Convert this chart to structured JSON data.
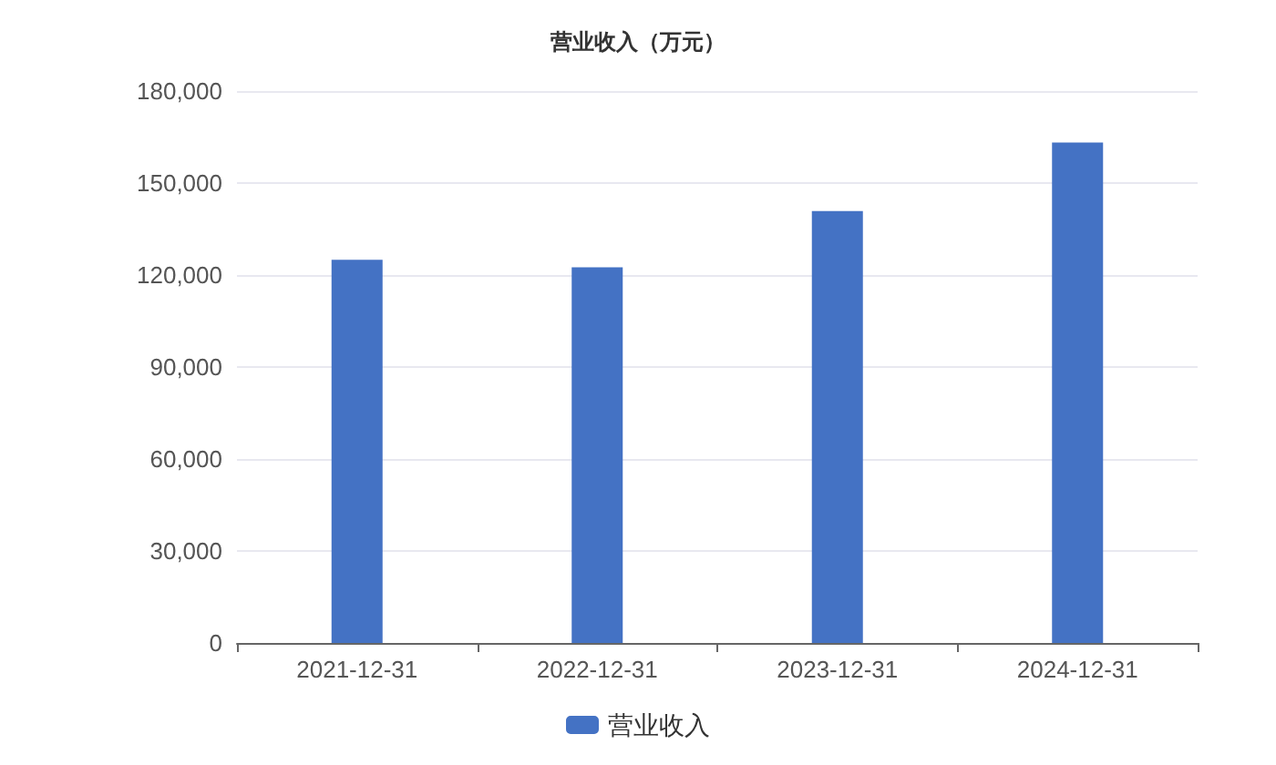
{
  "chart_data": {
    "type": "bar",
    "title": "营业收入（万元）",
    "categories": [
      "2021-12-31",
      "2022-12-31",
      "2023-12-31",
      "2024-12-31"
    ],
    "series": [
      {
        "name": "营业收入",
        "color": "#4472c4",
        "values": [
          125000,
          122500,
          140900,
          163200
        ]
      }
    ],
    "ylim": [
      0,
      180000
    ],
    "yticks": [
      0,
      {
        "value": 30000,
        "label": "30,000"
      },
      {
        "value": 60000,
        "label": "60,000"
      },
      {
        "value": 90000,
        "label": "90,000"
      },
      {
        "value": 120000,
        "label": "120,000"
      },
      {
        "value": 150000,
        "label": "150,000"
      },
      {
        "value": 180000,
        "label": "180,000"
      }
    ],
    "grid": "y",
    "legend": "bottom"
  }
}
